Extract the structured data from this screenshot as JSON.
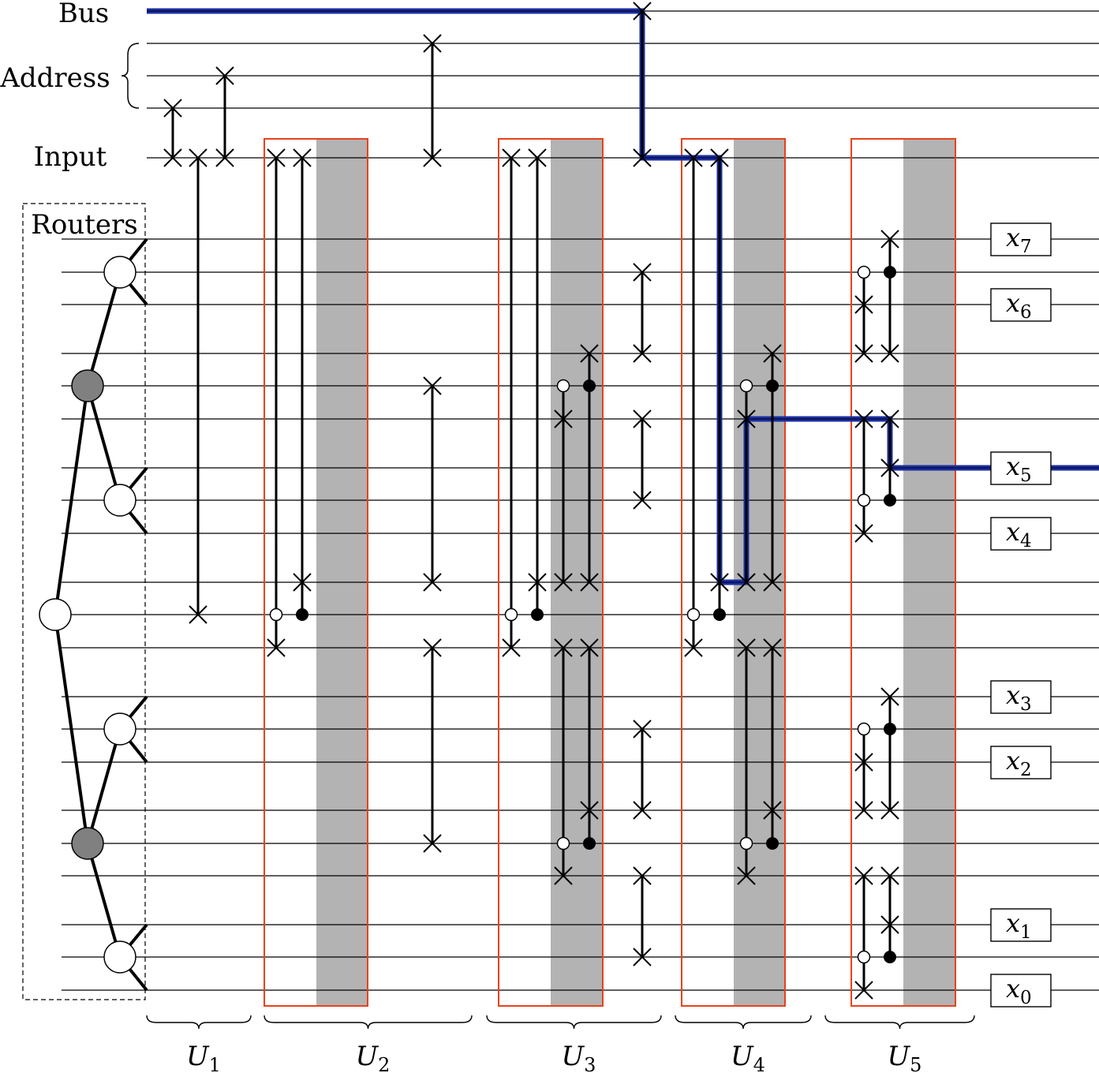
{
  "labels": {
    "bus": "Bus",
    "address": "Address",
    "input": "Input",
    "routers": "Routers"
  },
  "outputs": [
    {
      "base": "x",
      "sub": "7"
    },
    {
      "base": "x",
      "sub": "6"
    },
    {
      "base": "x",
      "sub": "5"
    },
    {
      "base": "x",
      "sub": "4"
    },
    {
      "base": "x",
      "sub": "3"
    },
    {
      "base": "x",
      "sub": "2"
    },
    {
      "base": "x",
      "sub": "1"
    },
    {
      "base": "x",
      "sub": "0"
    }
  ],
  "stages": [
    {
      "base": "U",
      "sub": "1"
    },
    {
      "base": "U",
      "sub": "2"
    },
    {
      "base": "U",
      "sub": "3"
    },
    {
      "base": "U",
      "sub": "4"
    },
    {
      "base": "U",
      "sub": "5"
    }
  ],
  "colors": {
    "wire": "#000000",
    "bus_path": "#1a2fa0",
    "stage_box": "#e8421c",
    "stage_shade": "#b3b3b3",
    "router_active": "#808080",
    "router_idle": "#ffffff"
  }
}
